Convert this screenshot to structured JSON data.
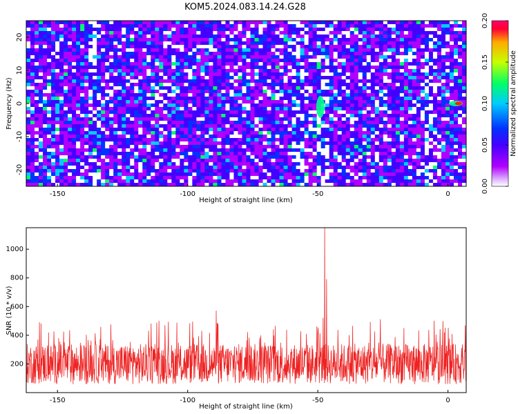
{
  "title": "KOM5.2024.083.14.24.G28",
  "chart_data": [
    {
      "type": "heatmap",
      "xlabel": "Height of straight line (km)",
      "ylabel": "Frequency (Hz)",
      "xlim": [
        -162,
        7
      ],
      "ylim": [
        -25,
        25
      ],
      "xticks": [
        -150,
        -100,
        -50,
        0
      ],
      "yticks": [
        -20,
        -10,
        0,
        10,
        20
      ],
      "colorbar": {
        "label": "Normalized spectral amplitude",
        "range": [
          0.0,
          0.2
        ],
        "ticks": [
          "0.00",
          "0.05",
          "0.10",
          "0.15",
          "0.20"
        ]
      },
      "colormap": [
        "#ffffff",
        "#b100ff",
        "#4400ff",
        "#0033ff",
        "#00ccff",
        "#00ff66",
        "#c8ff00",
        "#ffaa00",
        "#ff0033",
        "#ff0066"
      ],
      "features": [
        {
          "x": -49,
          "y": -1,
          "note": "bright vertical streak near -49 km"
        },
        {
          "x": 3,
          "y": 0,
          "note": "strong peak at 0 Hz near 3 km"
        }
      ]
    },
    {
      "type": "line",
      "xlabel": "Height of straight line (km)",
      "ylabel": "SNR (10 * v/v)",
      "xlim": [
        -162,
        7
      ],
      "ylim": [
        0,
        1150
      ],
      "xticks": [
        -150,
        -100,
        -50,
        0
      ],
      "yticks": [
        200,
        400,
        600,
        800,
        1000
      ],
      "color": "#ee2222",
      "baseline_mean": 220,
      "baseline_max": 500,
      "peaks": [
        {
          "x": -47.3,
          "y": 1150
        },
        {
          "x": -46.6,
          "y": 790
        },
        {
          "x": -48.0,
          "y": 520
        },
        {
          "x": -89.0,
          "y": 570
        },
        {
          "x": -111.0,
          "y": 500
        },
        {
          "x": -26.0,
          "y": 510
        }
      ]
    }
  ]
}
